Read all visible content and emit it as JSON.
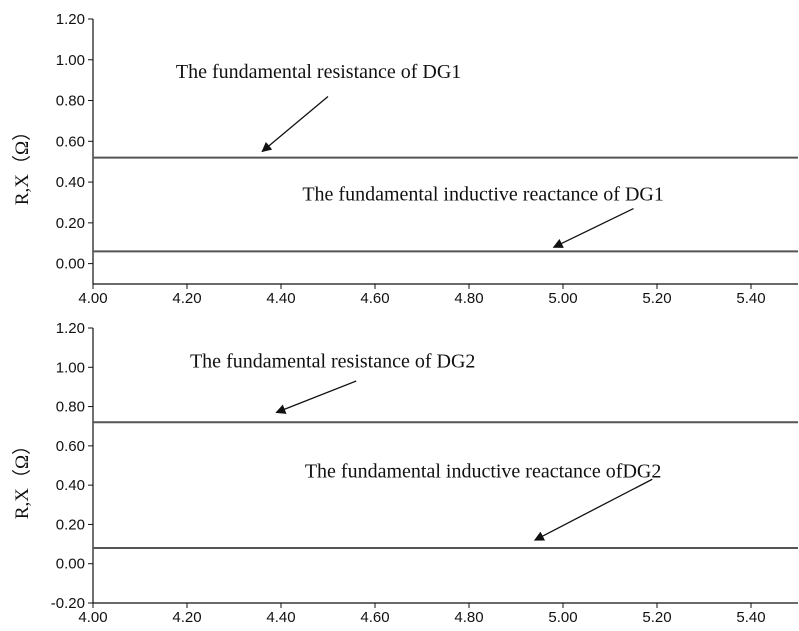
{
  "chart_data": [
    {
      "type": "line",
      "xlabel": "",
      "ylabel": "R,X（Ω）",
      "xlim": [
        4.0,
        5.5
      ],
      "ylim": [
        -0.1,
        1.2
      ],
      "x_ticks": [
        "4.00",
        "4.20",
        "4.40",
        "4.60",
        "4.80",
        "5.00",
        "5.20",
        "5.40"
      ],
      "y_ticks": [
        "0.00",
        "0.20",
        "0.40",
        "0.60",
        "0.80",
        "1.00",
        "1.20"
      ],
      "series": [
        {
          "label": "The fundamental resistance of DG1",
          "x": [
            4.0,
            5.5
          ],
          "y": [
            0.52,
            0.52
          ],
          "color": "#555555"
        },
        {
          "label": "The fundamental inductive reactance of DG1",
          "x": [
            4.0,
            5.5
          ],
          "y": [
            0.06,
            0.06
          ],
          "color": "#555555"
        }
      ],
      "annotations": [
        {
          "text": "The fundamental resistance of DG1",
          "text_pos": [
            4.48,
            0.91
          ],
          "arrow_from": [
            4.5,
            0.82
          ],
          "arrow_to": [
            4.36,
            0.55
          ]
        },
        {
          "text": "The fundamental inductive reactance of DG1",
          "text_pos": [
            4.83,
            0.31
          ],
          "arrow_from": [
            5.15,
            0.27
          ],
          "arrow_to": [
            4.98,
            0.08
          ]
        }
      ],
      "grid": false
    },
    {
      "type": "line",
      "xlabel": "",
      "ylabel": "R,X（Ω）",
      "xlim": [
        4.0,
        5.5
      ],
      "ylim": [
        -0.2,
        1.2
      ],
      "x_ticks": [
        "4.00",
        "4.20",
        "4.40",
        "4.60",
        "4.80",
        "5.00",
        "5.20",
        "5.40"
      ],
      "y_ticks": [
        "-0.20",
        "0.00",
        "0.20",
        "0.40",
        "0.60",
        "0.80",
        "1.00",
        "1.20"
      ],
      "series": [
        {
          "label": "The fundamental resistance of DG2",
          "x": [
            4.0,
            5.5
          ],
          "y": [
            0.72,
            0.72
          ],
          "color": "#555555"
        },
        {
          "label": "The fundamental inductive reactance ofDG2",
          "x": [
            4.0,
            5.5
          ],
          "y": [
            0.08,
            0.08
          ],
          "color": "#555555"
        }
      ],
      "annotations": [
        {
          "text": "The fundamental resistance of DG2",
          "text_pos": [
            4.51,
            1.0
          ],
          "arrow_from": [
            4.56,
            0.93
          ],
          "arrow_to": [
            4.39,
            0.77
          ]
        },
        {
          "text": "The fundamental inductive reactance ofDG2",
          "text_pos": [
            4.83,
            0.44
          ],
          "arrow_from": [
            5.19,
            0.43
          ],
          "arrow_to": [
            4.94,
            0.12
          ]
        }
      ],
      "grid": false
    }
  ]
}
